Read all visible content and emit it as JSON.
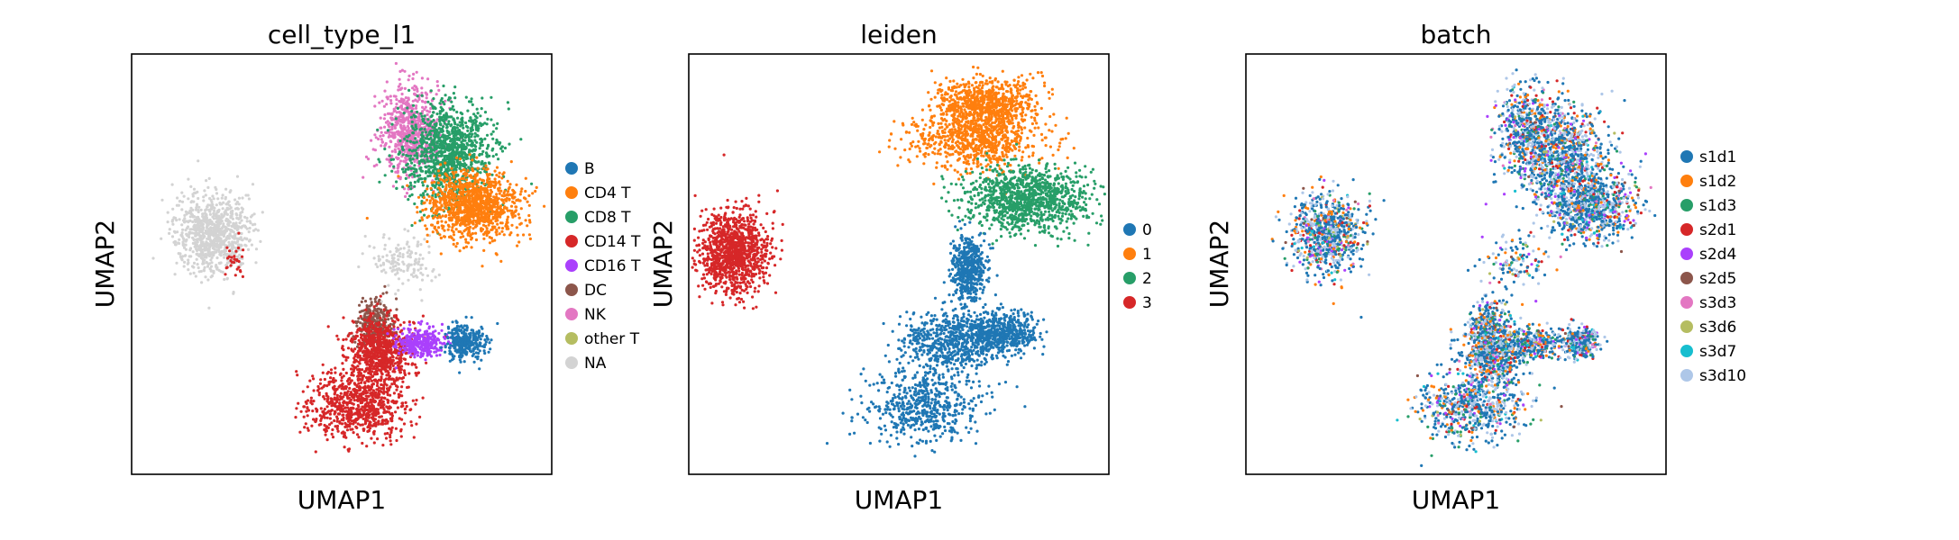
{
  "chart_data": [
    {
      "type": "scatter",
      "title": "cell_type_l1",
      "xlabel": "UMAP1",
      "ylabel": "UMAP2",
      "ticks": "none",
      "legend": "right",
      "series": [
        {
          "name": "B",
          "color": "#1f77b4"
        },
        {
          "name": "CD4 T",
          "color": "#ff7f0e"
        },
        {
          "name": "CD8 T",
          "color": "#279e68"
        },
        {
          "name": "CD14 T",
          "color": "#d62728"
        },
        {
          "name": "CD16 T",
          "color": "#aa40fc"
        },
        {
          "name": "DC",
          "color": "#8c564b"
        },
        {
          "name": "NK",
          "color": "#e377c2"
        },
        {
          "name": "other T",
          "color": "#b5bd61"
        },
        {
          "name": "NA",
          "color": "#d3d3d3"
        }
      ]
    },
    {
      "type": "scatter",
      "title": "leiden",
      "xlabel": "UMAP1",
      "ylabel": "UMAP2",
      "ticks": "none",
      "legend": "right",
      "series": [
        {
          "name": "0",
          "color": "#1f77b4"
        },
        {
          "name": "1",
          "color": "#ff7f0e"
        },
        {
          "name": "2",
          "color": "#279e68"
        },
        {
          "name": "3",
          "color": "#d62728"
        }
      ]
    },
    {
      "type": "scatter",
      "title": "batch",
      "xlabel": "UMAP1",
      "ylabel": "UMAP2",
      "ticks": "none",
      "legend": "right",
      "series": [
        {
          "name": "s1d1",
          "color": "#1f77b4"
        },
        {
          "name": "s1d2",
          "color": "#ff7f0e"
        },
        {
          "name": "s1d3",
          "color": "#279e68"
        },
        {
          "name": "s2d1",
          "color": "#d62728"
        },
        {
          "name": "s2d4",
          "color": "#aa40fc"
        },
        {
          "name": "s2d5",
          "color": "#8c564b"
        },
        {
          "name": "s3d3",
          "color": "#e377c2"
        },
        {
          "name": "s3d6",
          "color": "#b5bd61"
        },
        {
          "name": "s3d7",
          "color": "#17becf"
        },
        {
          "name": "s3d10",
          "color": "#aec7e8"
        }
      ]
    }
  ]
}
